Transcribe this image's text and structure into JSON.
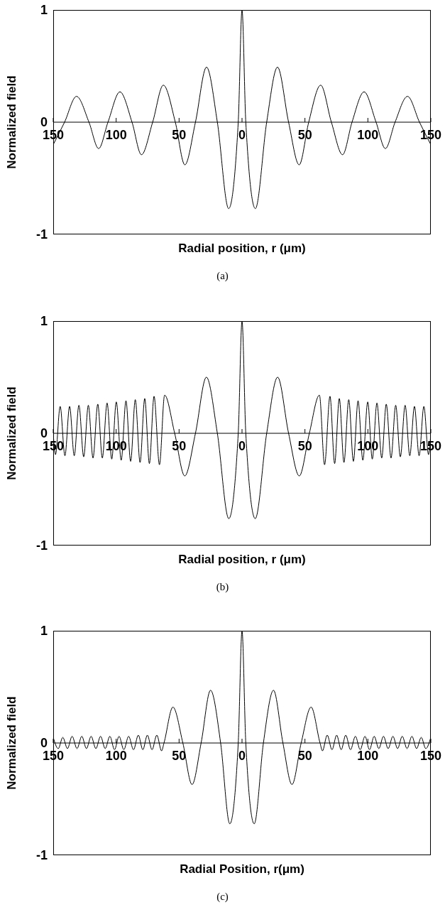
{
  "chart_data": [
    {
      "type": "line",
      "xlabel": "Radial position, r (μm)",
      "ylabel": "Normalized field",
      "annotations": [
        "(a)"
      ],
      "xlim": [
        -150,
        150
      ],
      "ylim": [
        -1,
        1
      ],
      "yticks": [
        -1,
        0,
        1
      ],
      "xticks": [
        {
          "value": -150,
          "label": "150"
        },
        {
          "value": -100,
          "label": "100"
        },
        {
          "value": -50,
          "label": "50"
        },
        0,
        50,
        100,
        150
      ],
      "grid": false,
      "marker": "none",
      "line_style": "solid",
      "series": [
        {
          "color": "#000000",
          "x": [
            -150,
            -141,
            -131.5,
            -121.6,
            -113.9,
            -106.5,
            -97,
            -87.4,
            -79.9,
            -71,
            -62.5,
            -53,
            -45.4,
            -37,
            -28.2,
            -19.6,
            -10.6,
            -3,
            0,
            3,
            10.6,
            19.6,
            28.2,
            37,
            45.4,
            53,
            62.5,
            71,
            79.9,
            87.4,
            97,
            106.5,
            113.9,
            121.6,
            131.5,
            141,
            150
          ],
          "values": [
            -0.2,
            0,
            0.23,
            0,
            -0.235,
            0,
            0.27,
            0,
            -0.29,
            0,
            0.33,
            0,
            -0.38,
            0,
            0.49,
            0,
            -0.77,
            0,
            1,
            0,
            -0.77,
            0,
            0.49,
            0,
            -0.38,
            0,
            0.33,
            0,
            -0.29,
            0,
            0.27,
            0,
            -0.235,
            0,
            0.23,
            0,
            -0.2
          ]
        }
      ]
    },
    {
      "type": "line",
      "xlabel": "Radial position, r (μm)",
      "ylabel": "Normalized field",
      "annotations": [
        "(b)"
      ],
      "xlim": [
        -150,
        150
      ],
      "ylim": [
        -1,
        1
      ],
      "yticks": [
        -1,
        0,
        1
      ],
      "xticks": [
        {
          "value": -150,
          "label": "150"
        },
        {
          "value": -100,
          "label": "100"
        },
        {
          "value": -50,
          "label": "50"
        },
        0,
        50,
        100,
        150
      ],
      "grid": false,
      "marker": "none",
      "line_style": "solid",
      "series": [
        {
          "color": "#000000",
          "x": [
            -150,
            -148.2,
            -144.5,
            -140.7,
            -137,
            -133.3,
            -129.6,
            -125.8,
            -122.1,
            -118.4,
            -114.6,
            -111,
            -107.2,
            -103.5,
            -99.9,
            -96,
            -92.2,
            -88.5,
            -84.8,
            -81,
            -77.3,
            -73.6,
            -69.9,
            -65.6,
            -61.5,
            -53.5,
            -45.5,
            -37,
            -28.3,
            -19.6,
            -10.5,
            -3,
            0,
            3,
            10.5,
            19.6,
            28.3,
            37,
            45.5,
            53.5,
            61.5,
            65.6,
            69.9,
            73.6,
            77.3,
            81,
            84.8,
            88.5,
            92.2,
            96,
            99.9,
            103.5,
            107.2,
            111,
            114.6,
            118.4,
            122.1,
            125.8,
            129.6,
            133.3,
            137,
            140.7,
            144.5,
            148.2,
            150
          ],
          "values": [
            0,
            -0.19,
            0.24,
            -0.2,
            0.24,
            -0.2,
            0.25,
            -0.21,
            0.25,
            -0.22,
            0.26,
            -0.22,
            0.27,
            -0.23,
            0.28,
            -0.24,
            0.29,
            -0.25,
            0.3,
            -0.26,
            0.31,
            -0.27,
            0.33,
            -0.28,
            0.34,
            0,
            -0.38,
            0,
            0.5,
            0,
            -0.76,
            0,
            1,
            0,
            -0.76,
            0,
            0.5,
            0,
            -0.38,
            0,
            0.34,
            -0.28,
            0.33,
            -0.27,
            0.31,
            -0.26,
            0.3,
            -0.25,
            0.29,
            -0.24,
            0.28,
            -0.23,
            0.27,
            -0.22,
            0.26,
            -0.22,
            0.25,
            -0.21,
            0.25,
            -0.2,
            0.24,
            -0.2,
            0.24,
            -0.19,
            0
          ]
        }
      ]
    },
    {
      "type": "line",
      "xlabel": "Radial Position, r(μm)",
      "ylabel": "Normalized field",
      "annotations": [
        "(c)"
      ],
      "xlim": [
        -150,
        150
      ],
      "ylim": [
        -1,
        1
      ],
      "yticks": [
        -1,
        0,
        1
      ],
      "xticks": [
        {
          "value": -150,
          "label": "150"
        },
        {
          "value": -100,
          "label": "100"
        },
        {
          "value": -50,
          "label": "50"
        },
        0,
        50,
        100,
        150
      ],
      "grid": false,
      "marker": "none",
      "line_style": "solid",
      "series": [
        {
          "color": "#000000",
          "x": [
            -150,
            -146,
            -142.4,
            -138.7,
            -135,
            -131.1,
            -127.3,
            -123.6,
            -119.9,
            -116.1,
            -112.4,
            -108.7,
            -105,
            -101.3,
            -97.7,
            -93.9,
            -90.1,
            -86.2,
            -82.4,
            -78.8,
            -75.2,
            -71.5,
            -67.7,
            -63.9,
            -62,
            -54.9,
            -47,
            -39.7,
            -32.5,
            -25,
            -17,
            -9.7,
            -3,
            0,
            3,
            9.7,
            17,
            25,
            32.5,
            39.7,
            47,
            54.9,
            62,
            63.9,
            67.7,
            71.5,
            75.2,
            78.8,
            82.4,
            86.2,
            90.1,
            93.9,
            97.7,
            101.3,
            105,
            108.7,
            112.4,
            116.1,
            119.9,
            123.6,
            127.3,
            131.1,
            135,
            138.7,
            142.4,
            146,
            150
          ],
          "values": [
            0.05,
            -0.05,
            0.05,
            -0.05,
            0.06,
            -0.05,
            0.06,
            -0.05,
            0.06,
            -0.05,
            0.06,
            -0.05,
            0.06,
            -0.06,
            0.06,
            -0.06,
            0.06,
            -0.06,
            0.07,
            -0.06,
            0.07,
            -0.06,
            0.07,
            -0.07,
            0,
            0.32,
            0,
            -0.37,
            0,
            0.47,
            0,
            -0.72,
            0,
            1,
            0,
            -0.72,
            0,
            0.47,
            0,
            -0.37,
            0,
            0.32,
            0,
            -0.07,
            0.07,
            -0.06,
            0.07,
            -0.06,
            0.07,
            -0.06,
            0.06,
            -0.06,
            0.06,
            -0.06,
            0.06,
            -0.05,
            0.06,
            -0.05,
            0.06,
            -0.05,
            0.06,
            -0.05,
            0.06,
            -0.05,
            0.05,
            -0.05,
            0.05
          ]
        }
      ]
    }
  ]
}
